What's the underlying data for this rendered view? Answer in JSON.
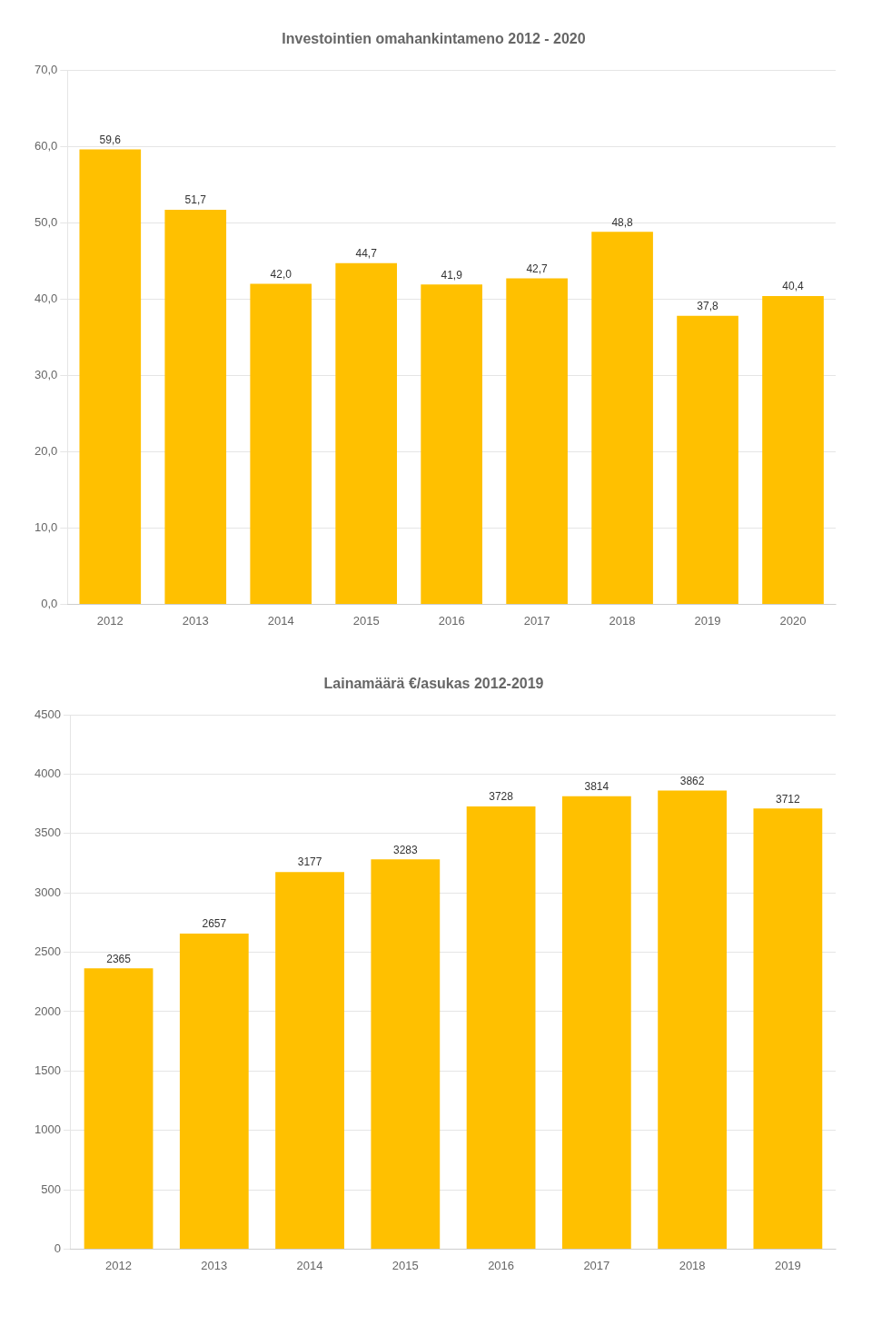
{
  "chart_data": [
    {
      "type": "bar",
      "title": "Investointien omahankintameno 2012 - 2020",
      "categories": [
        "2012",
        "2013",
        "2014",
        "2015",
        "2016",
        "2017",
        "2018",
        "2019",
        "2020"
      ],
      "values": [
        59.6,
        51.7,
        42.0,
        44.7,
        41.9,
        42.7,
        48.8,
        37.8,
        40.4
      ],
      "value_labels": [
        "59,6",
        "51,7",
        "42,0",
        "44,7",
        "41,9",
        "42,7",
        "48,8",
        "37,8",
        "40,4"
      ],
      "color": "#FFC000",
      "ylim": [
        0,
        70
      ],
      "yticks": [
        {
          "value": 0,
          "label": "0,0"
        },
        {
          "value": 10,
          "label": "10,0"
        },
        {
          "value": 20,
          "label": "20,0"
        },
        {
          "value": 30,
          "label": "30,0"
        },
        {
          "value": 40,
          "label": "40,0"
        },
        {
          "value": 50,
          "label": "50,0"
        },
        {
          "value": 60,
          "label": "60,0"
        },
        {
          "value": 70,
          "label": "70,0"
        }
      ],
      "grid": true,
      "data_labels": true
    },
    {
      "type": "bar",
      "title": "Lainamäärä €/asukas 2012-2019",
      "categories": [
        "2012",
        "2013",
        "2014",
        "2015",
        "2016",
        "2017",
        "2018",
        "2019"
      ],
      "values": [
        2365,
        2657,
        3177,
        3283,
        3728,
        3814,
        3862,
        3712
      ],
      "color": "#FFC000",
      "ylim": [
        0,
        4500
      ],
      "yticks": [
        0,
        500,
        1000,
        1500,
        2000,
        2500,
        3000,
        3500,
        4000,
        4500
      ],
      "grid": true,
      "data_labels": true
    }
  ]
}
